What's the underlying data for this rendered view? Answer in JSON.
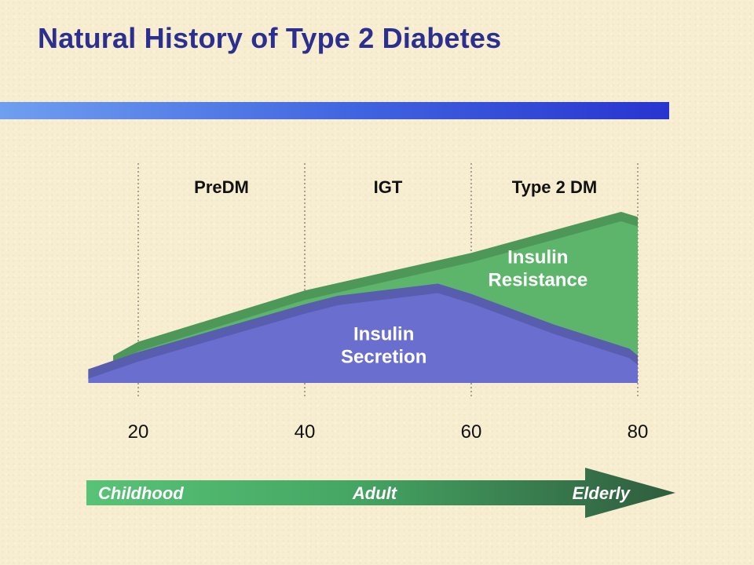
{
  "slide": {
    "title": "Natural History of Type 2 Diabetes",
    "colors": {
      "title": "#2b2f8f",
      "insulin_resistance": "#5cb56a",
      "insulin_secretion": "#6a6fcf",
      "arrow_start": "#58c377",
      "arrow_end": "#2f5c3e"
    }
  },
  "chart_data": {
    "type": "area",
    "x_ticks": [
      20,
      40,
      60,
      80
    ],
    "xlim": [
      14,
      80
    ],
    "phases": [
      "PreDM",
      "IGT",
      "Type 2 DM"
    ],
    "phase_boundaries": [
      20,
      40,
      60,
      80
    ],
    "grid": "dotted vertical lines at age ticks",
    "series": [
      {
        "name": "Insulin Resistance",
        "x": [
          17,
          20,
          40,
          60,
          78,
          80
        ],
        "y": [
          0.16,
          0.24,
          0.54,
          0.76,
          1.0,
          0.97
        ]
      },
      {
        "name": "Insulin Secretion",
        "x": [
          14,
          20,
          40,
          44,
          56,
          60,
          70,
          79,
          80
        ],
        "y": [
          0.08,
          0.18,
          0.46,
          0.51,
          0.58,
          0.52,
          0.34,
          0.2,
          0.16
        ]
      }
    ],
    "series_labels": [
      {
        "lines": [
          "Insulin",
          "Resistance"
        ],
        "x": 68,
        "y": 0.7
      },
      {
        "lines": [
          "Insulin",
          "Secretion"
        ],
        "x": 49.5,
        "y": 0.25
      }
    ],
    "life_stages": [
      "Childhood",
      "Adult",
      "Elderly"
    ]
  }
}
